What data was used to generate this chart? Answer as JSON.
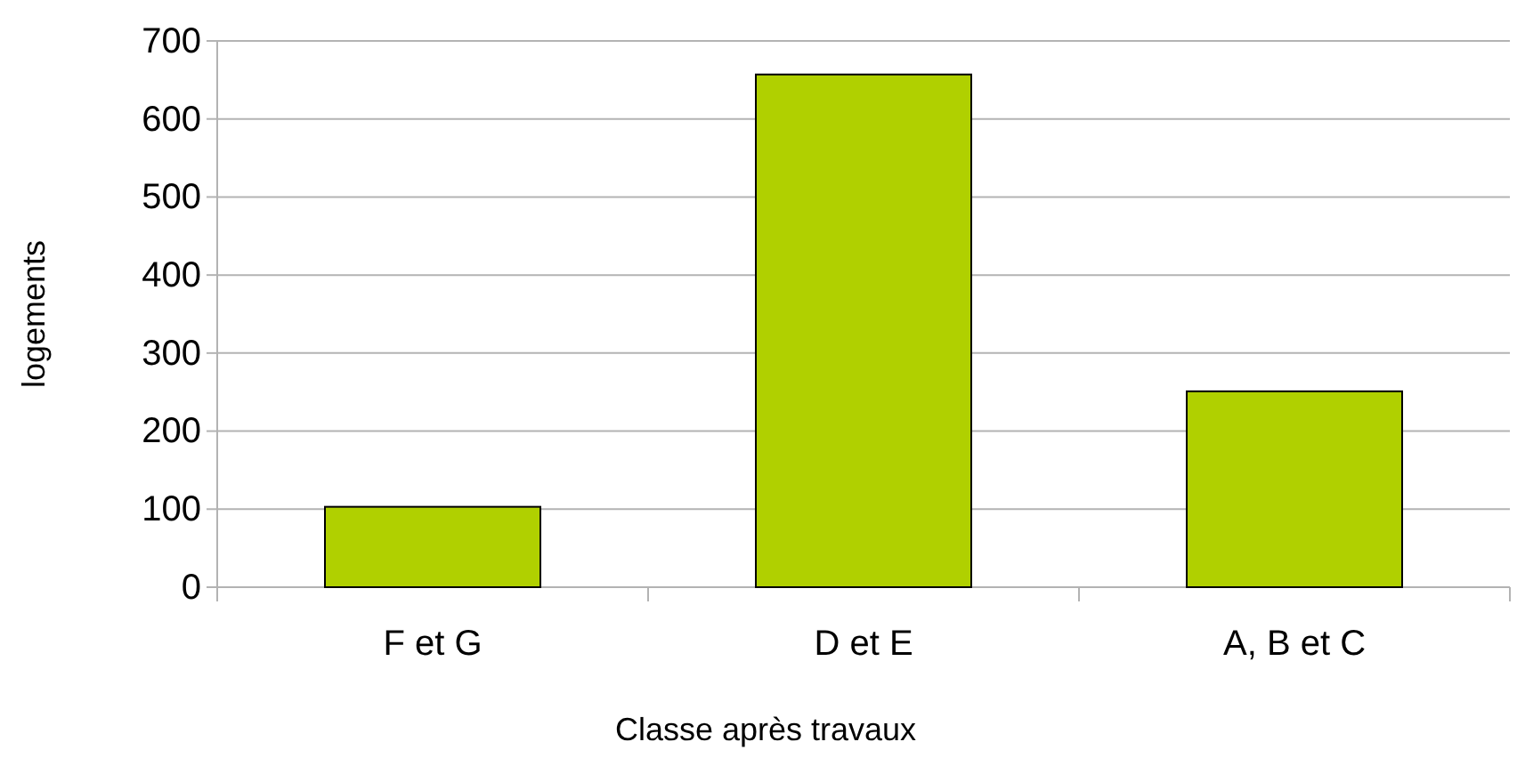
{
  "chart_data": {
    "type": "bar",
    "xlabel": "Classe après travaux",
    "ylabel": "logements",
    "categories": [
      "F et G",
      "D et E",
      "A, B et C"
    ],
    "values": [
      103,
      657,
      251
    ],
    "color": "#b0d000",
    "ylim": [
      0,
      700
    ],
    "yticks": [
      0,
      100,
      200,
      300,
      400,
      500,
      600,
      700
    ],
    "grid": "y"
  }
}
